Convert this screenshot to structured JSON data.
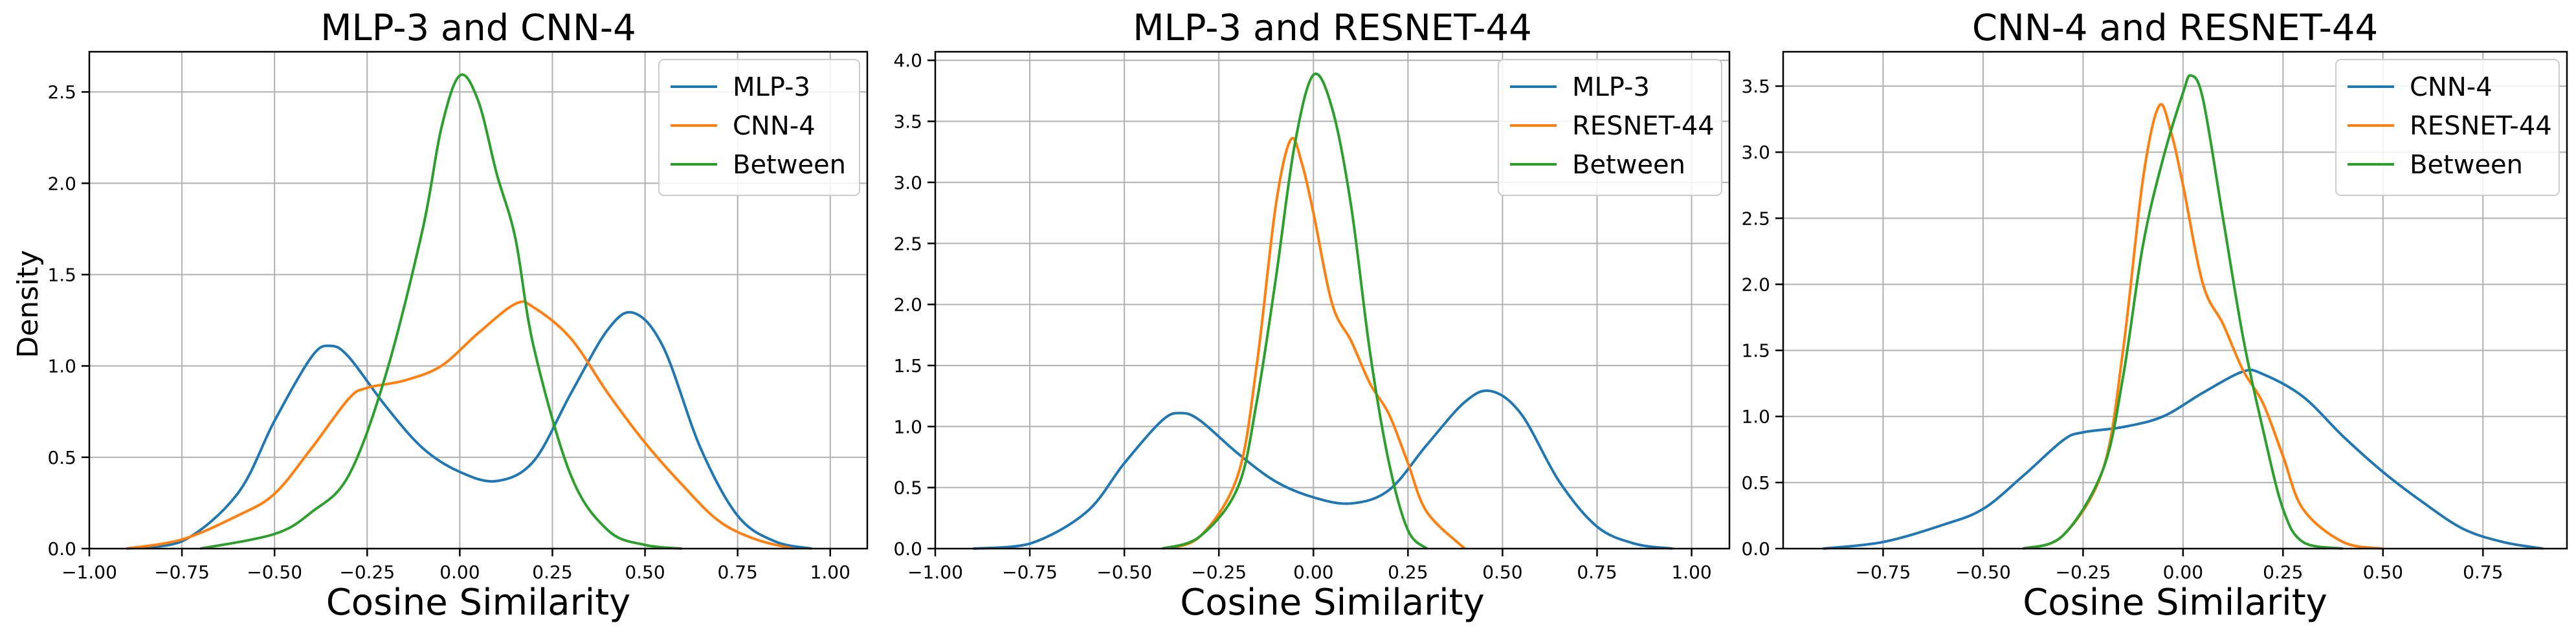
{
  "figure": {
    "ylabel": "Density"
  },
  "chart_data": [
    {
      "type": "line",
      "title": "MLP-3 and CNN-4",
      "xlabel": "Cosine Similarity",
      "ylabel": "Density",
      "xlim": [
        -1.0,
        1.1
      ],
      "ylim": [
        0,
        2.72
      ],
      "xticks": [
        -1.0,
        -0.75,
        -0.5,
        -0.25,
        0.0,
        0.25,
        0.5,
        0.75,
        1.0
      ],
      "xtick_labels": [
        "−1.00",
        "−0.75",
        "−0.50",
        "−0.25",
        "0.00",
        "0.25",
        "0.50",
        "0.75",
        "1.00"
      ],
      "yticks": [
        0.0,
        0.5,
        1.0,
        1.5,
        2.0,
        2.5
      ],
      "ytick_labels": [
        "0.0",
        "0.5",
        "1.0",
        "1.5",
        "2.0",
        "2.5"
      ],
      "grid": true,
      "legend_position": "top-right",
      "series": [
        {
          "name": "MLP-3",
          "color": "#1f77b4",
          "x": [
            -0.9,
            -0.75,
            -0.6,
            -0.5,
            -0.4,
            -0.35,
            -0.3,
            -0.2,
            -0.1,
            0.0,
            0.1,
            0.2,
            0.3,
            0.4,
            0.47,
            0.55,
            0.65,
            0.75,
            0.85,
            0.95
          ],
          "y": [
            0.0,
            0.04,
            0.3,
            0.7,
            1.05,
            1.11,
            1.05,
            0.78,
            0.55,
            0.42,
            0.37,
            0.48,
            0.85,
            1.2,
            1.29,
            1.1,
            0.55,
            0.18,
            0.04,
            0.0
          ]
        },
        {
          "name": "CNN-4",
          "color": "#ff7f0e",
          "x": [
            -0.9,
            -0.75,
            -0.6,
            -0.5,
            -0.4,
            -0.3,
            -0.25,
            -0.15,
            -0.05,
            0.05,
            0.15,
            0.2,
            0.3,
            0.4,
            0.5,
            0.6,
            0.7,
            0.8,
            0.9
          ],
          "y": [
            0.0,
            0.05,
            0.18,
            0.3,
            0.55,
            0.82,
            0.88,
            0.92,
            1.0,
            1.18,
            1.34,
            1.32,
            1.15,
            0.85,
            0.58,
            0.35,
            0.15,
            0.05,
            0.0
          ]
        },
        {
          "name": "Between",
          "color": "#2ca02c",
          "x": [
            -0.7,
            -0.5,
            -0.4,
            -0.3,
            -0.2,
            -0.1,
            -0.05,
            0.0,
            0.05,
            0.1,
            0.15,
            0.2,
            0.3,
            0.4,
            0.5,
            0.6
          ],
          "y": [
            0.0,
            0.08,
            0.2,
            0.4,
            0.95,
            1.75,
            2.3,
            2.59,
            2.45,
            2.05,
            1.7,
            1.1,
            0.4,
            0.1,
            0.02,
            0.0
          ]
        }
      ]
    },
    {
      "type": "line",
      "title": "MLP-3 and RESNET-44",
      "xlabel": "Cosine Similarity",
      "ylabel": "",
      "xlim": [
        -1.0,
        1.1
      ],
      "ylim": [
        0,
        4.07
      ],
      "xticks": [
        -1.0,
        -0.75,
        -0.5,
        -0.25,
        0.0,
        0.25,
        0.5,
        0.75,
        1.0
      ],
      "xtick_labels": [
        "−1.00",
        "−0.75",
        "−0.50",
        "−0.25",
        "0.00",
        "0.25",
        "0.50",
        "0.75",
        "1.00"
      ],
      "yticks": [
        0.0,
        0.5,
        1.0,
        1.5,
        2.0,
        2.5,
        3.0,
        3.5,
        4.0
      ],
      "ytick_labels": [
        "0.0",
        "0.5",
        "1.0",
        "1.5",
        "2.0",
        "2.5",
        "3.0",
        "3.5",
        "4.0"
      ],
      "grid": true,
      "legend_position": "top-right",
      "series": [
        {
          "name": "MLP-3",
          "color": "#1f77b4",
          "x": [
            -0.9,
            -0.75,
            -0.6,
            -0.5,
            -0.4,
            -0.35,
            -0.3,
            -0.2,
            -0.1,
            0.0,
            0.1,
            0.2,
            0.3,
            0.4,
            0.47,
            0.55,
            0.65,
            0.75,
            0.85,
            0.95
          ],
          "y": [
            0.0,
            0.04,
            0.3,
            0.7,
            1.05,
            1.11,
            1.05,
            0.78,
            0.55,
            0.42,
            0.37,
            0.48,
            0.85,
            1.2,
            1.29,
            1.1,
            0.55,
            0.18,
            0.04,
            0.0
          ]
        },
        {
          "name": "RESNET-44",
          "color": "#ff7f0e",
          "x": [
            -0.4,
            -0.3,
            -0.2,
            -0.15,
            -0.1,
            -0.06,
            -0.03,
            0.0,
            0.05,
            0.1,
            0.15,
            0.2,
            0.25,
            0.3,
            0.4
          ],
          "y": [
            0.0,
            0.1,
            0.6,
            1.5,
            2.8,
            3.35,
            3.15,
            2.75,
            2.0,
            1.7,
            1.35,
            1.1,
            0.7,
            0.3,
            0.0
          ]
        },
        {
          "name": "Between",
          "color": "#2ca02c",
          "x": [
            -0.4,
            -0.3,
            -0.2,
            -0.15,
            -0.1,
            -0.05,
            0.0,
            0.05,
            0.1,
            0.15,
            0.2,
            0.25,
            0.3
          ],
          "y": [
            0.0,
            0.1,
            0.5,
            1.2,
            2.2,
            3.3,
            3.88,
            3.6,
            2.8,
            1.6,
            0.7,
            0.15,
            0.0
          ]
        }
      ]
    },
    {
      "type": "line",
      "title": "CNN-4 and RESNET-44",
      "xlabel": "Cosine Similarity",
      "ylabel": "",
      "xlim": [
        -1.0,
        0.96
      ],
      "ylim": [
        0,
        3.76
      ],
      "xticks": [
        -0.75,
        -0.5,
        -0.25,
        0.0,
        0.25,
        0.5,
        0.75
      ],
      "xtick_labels": [
        "−0.75",
        "−0.50",
        "−0.25",
        "0.00",
        "0.25",
        "0.50",
        "0.75"
      ],
      "yticks": [
        0.0,
        0.5,
        1.0,
        1.5,
        2.0,
        2.5,
        3.0,
        3.5
      ],
      "ytick_labels": [
        "0.0",
        "0.5",
        "1.0",
        "1.5",
        "2.0",
        "2.5",
        "3.0",
        "3.5"
      ],
      "grid": true,
      "legend_position": "top-right",
      "series": [
        {
          "name": "CNN-4",
          "color": "#1f77b4",
          "x": [
            -0.9,
            -0.75,
            -0.6,
            -0.5,
            -0.4,
            -0.3,
            -0.25,
            -0.15,
            -0.05,
            0.05,
            0.15,
            0.2,
            0.3,
            0.4,
            0.5,
            0.6,
            0.7,
            0.8,
            0.9
          ],
          "y": [
            0.0,
            0.05,
            0.18,
            0.3,
            0.55,
            0.82,
            0.88,
            0.92,
            1.0,
            1.18,
            1.34,
            1.32,
            1.15,
            0.85,
            0.58,
            0.35,
            0.15,
            0.05,
            0.0
          ]
        },
        {
          "name": "RESNET-44",
          "color": "#ff7f0e",
          "x": [
            -0.4,
            -0.3,
            -0.2,
            -0.15,
            -0.1,
            -0.06,
            -0.03,
            0.0,
            0.05,
            0.1,
            0.15,
            0.2,
            0.25,
            0.3,
            0.4,
            0.5
          ],
          "y": [
            0.0,
            0.1,
            0.6,
            1.5,
            2.8,
            3.35,
            3.15,
            2.75,
            2.0,
            1.7,
            1.35,
            1.1,
            0.7,
            0.3,
            0.05,
            0.0
          ]
        },
        {
          "name": "Between",
          "color": "#2ca02c",
          "x": [
            -0.4,
            -0.3,
            -0.2,
            -0.15,
            -0.1,
            -0.05,
            0.0,
            0.02,
            0.05,
            0.1,
            0.15,
            0.2,
            0.25,
            0.3,
            0.4
          ],
          "y": [
            0.0,
            0.1,
            0.6,
            1.3,
            2.3,
            2.95,
            3.45,
            3.58,
            3.4,
            2.5,
            1.6,
            0.9,
            0.3,
            0.05,
            0.0
          ]
        }
      ]
    }
  ]
}
